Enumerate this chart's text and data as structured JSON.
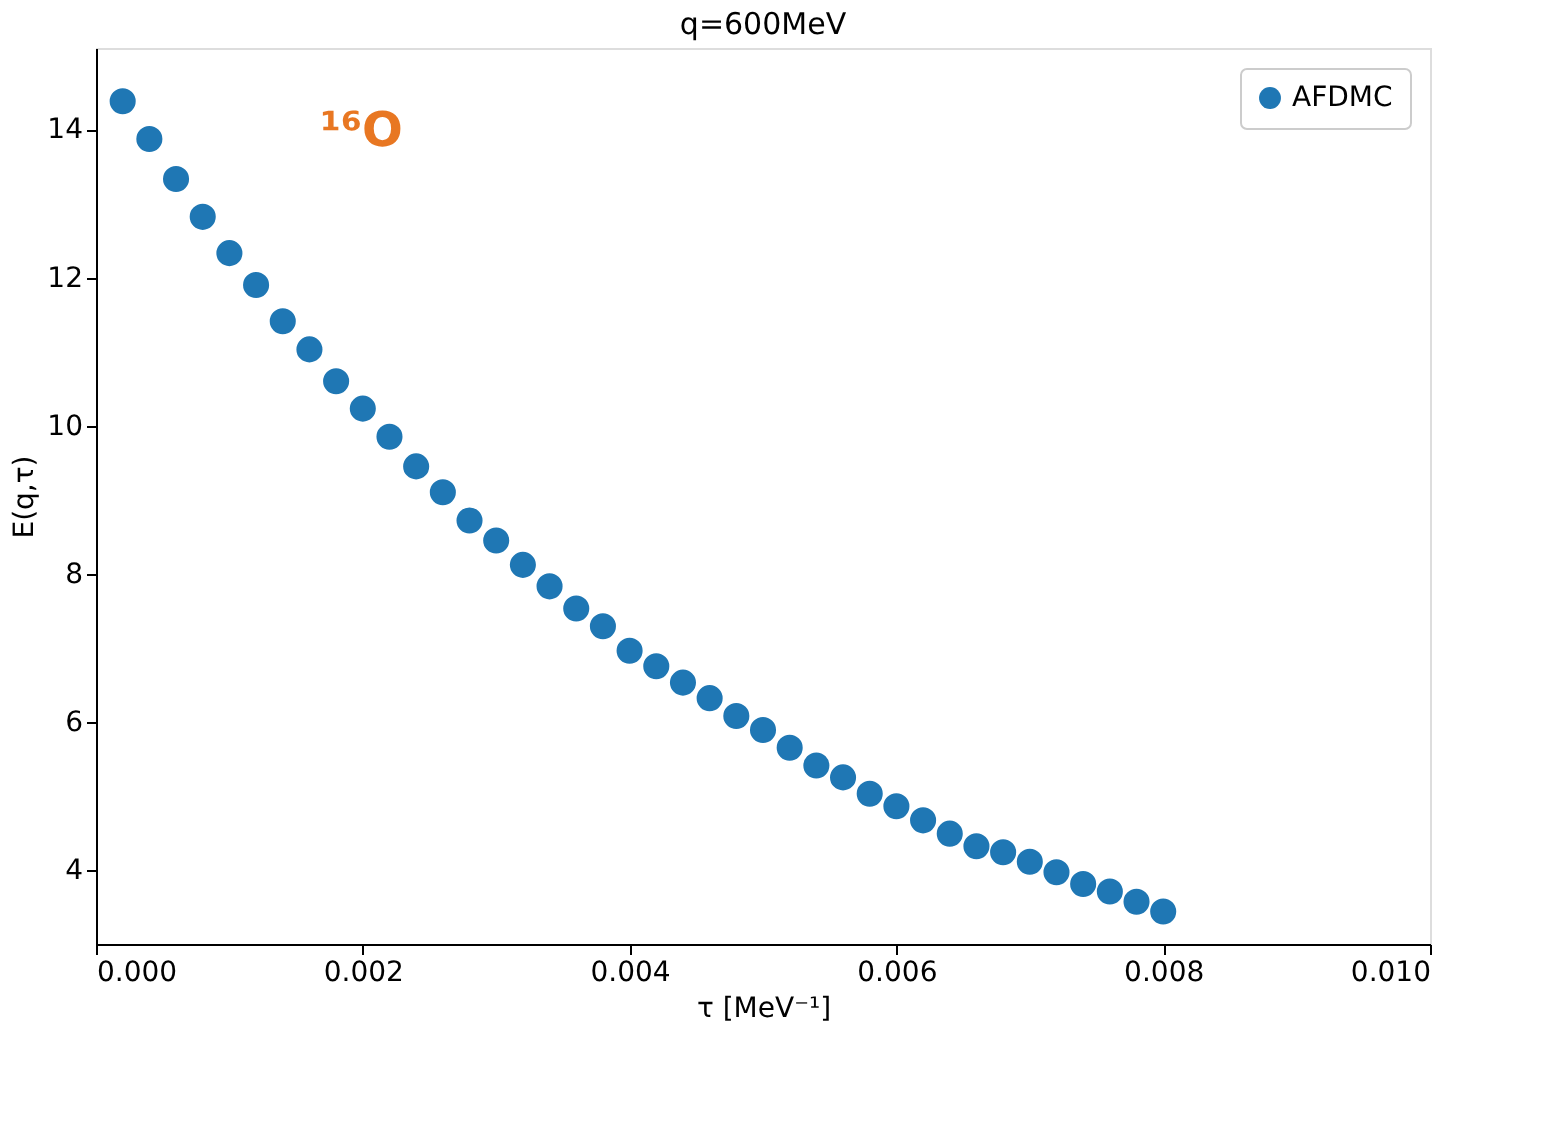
{
  "chart_data": {
    "type": "scatter",
    "title": "q=600MeV",
    "xlabel": "τ [MeV⁻¹]",
    "ylabel": "E(q,τ)",
    "x": [
      0.0002,
      0.0004,
      0.0006,
      0.0008,
      0.001,
      0.0012,
      0.0014,
      0.0016,
      0.0018,
      0.002,
      0.0022,
      0.0024,
      0.0026,
      0.0028,
      0.003,
      0.0032,
      0.0034,
      0.0036,
      0.0038,
      0.004,
      0.0042,
      0.0044,
      0.0046,
      0.0048,
      0.005,
      0.0052,
      0.0054,
      0.0056,
      0.0058,
      0.006,
      0.0062,
      0.0064,
      0.0066,
      0.0068,
      0.007,
      0.0072,
      0.0074,
      0.0076,
      0.0078,
      0.008
    ],
    "series": [
      {
        "name": "AFDMC",
        "color": "#1f77b4",
        "values": [
          14.38,
          13.87,
          13.33,
          12.82,
          12.33,
          11.9,
          11.41,
          11.03,
          10.6,
          10.23,
          9.85,
          9.45,
          9.1,
          8.72,
          8.45,
          8.12,
          7.83,
          7.53,
          7.29,
          6.96,
          6.75,
          6.53,
          6.32,
          6.08,
          5.89,
          5.65,
          5.41,
          5.25,
          5.03,
          4.86,
          4.67,
          4.49,
          4.32,
          4.24,
          4.11,
          3.97,
          3.81,
          3.71,
          3.57,
          3.44
        ]
      }
    ],
    "annotations": [
      "¹⁶O"
    ],
    "xlim": [
      0,
      0.01
    ],
    "xticks": [
      {
        "value": 0,
        "label": "0.000"
      },
      {
        "value": 0.002,
        "label": "0.002"
      },
      {
        "value": 0.004,
        "label": "0.004"
      },
      {
        "value": 0.006,
        "label": "0.006"
      },
      {
        "value": 0.008,
        "label": "0.008"
      },
      {
        "value": 0.01,
        "label": "0.010"
      }
    ],
    "ylim": [
      3.0,
      15.1
    ],
    "yticks": [
      4,
      6,
      8,
      10,
      12,
      14
    ],
    "grid": false,
    "legend": "top right",
    "marker": "circle"
  }
}
